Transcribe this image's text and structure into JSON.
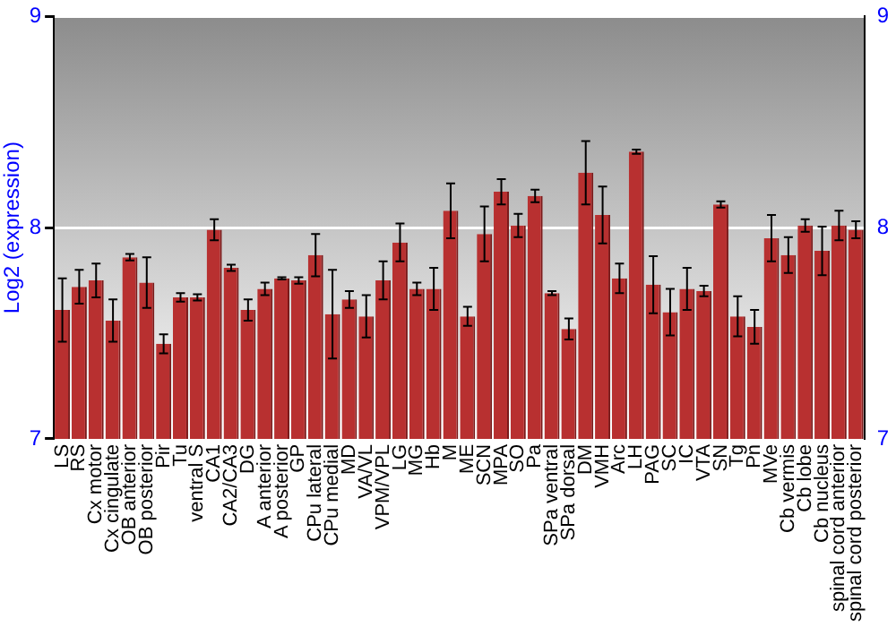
{
  "chart_data": {
    "type": "bar",
    "ylabel": "Log2 (expression)",
    "categories": [
      "LS",
      "RS",
      "Cx motor",
      "Cx cingulate",
      "OB anterior",
      "OB posterior",
      "Pir",
      "Tu",
      "ventral S",
      "CA1",
      "CA2/CA3",
      "DG",
      "A anterior",
      "A posterior",
      "GP",
      "CPu lateral",
      "CPu medial",
      "MD",
      "VA/VL",
      "VPM/VPL",
      "LG",
      "MG",
      "Hb",
      "M",
      "ME",
      "SCN",
      "MPA",
      "SO",
      "Pa",
      "SPa ventral",
      "SPa dorsal",
      "DM",
      "VMH",
      "Arc",
      "LH",
      "PAG",
      "SC",
      "IC",
      "VTA",
      "SN",
      "Tg",
      "Pn",
      "MVe",
      "Cb vermis",
      "Cb lobe",
      "Cb nucleus",
      "spinal cord anterior",
      "spinal cord posterior"
    ],
    "values": [
      7.61,
      7.72,
      7.75,
      7.56,
      7.86,
      7.74,
      7.45,
      7.67,
      7.67,
      7.99,
      7.81,
      7.61,
      7.71,
      7.76,
      7.75,
      7.87,
      7.59,
      7.66,
      7.58,
      7.75,
      7.93,
      7.71,
      7.71,
      8.08,
      7.58,
      7.97,
      8.17,
      8.01,
      8.15,
      7.69,
      7.52,
      8.26,
      8.06,
      7.76,
      8.36,
      7.73,
      7.6,
      7.71,
      7.7,
      8.11,
      7.58,
      7.53,
      7.95,
      7.87,
      8.01,
      7.89,
      8.01,
      7.99
    ],
    "errors": [
      0.15,
      0.08,
      0.08,
      0.1,
      0.015,
      0.12,
      0.045,
      0.02,
      0.015,
      0.05,
      0.015,
      0.05,
      0.03,
      0.005,
      0.015,
      0.1,
      0.21,
      0.04,
      0.1,
      0.09,
      0.09,
      0.03,
      0.1,
      0.13,
      0.045,
      0.13,
      0.06,
      0.055,
      0.03,
      0.01,
      0.05,
      0.15,
      0.135,
      0.07,
      0.01,
      0.135,
      0.11,
      0.1,
      0.025,
      0.015,
      0.095,
      0.08,
      0.11,
      0.085,
      0.03,
      0.115,
      0.07,
      0.04
    ],
    "color": "#b83030",
    "ylim": [
      7,
      9
    ],
    "yticks": [
      7,
      8,
      9
    ],
    "y2lim": [
      7,
      9
    ],
    "y2ticks": [
      7,
      8,
      9
    ],
    "grid": "y",
    "legend": false
  }
}
